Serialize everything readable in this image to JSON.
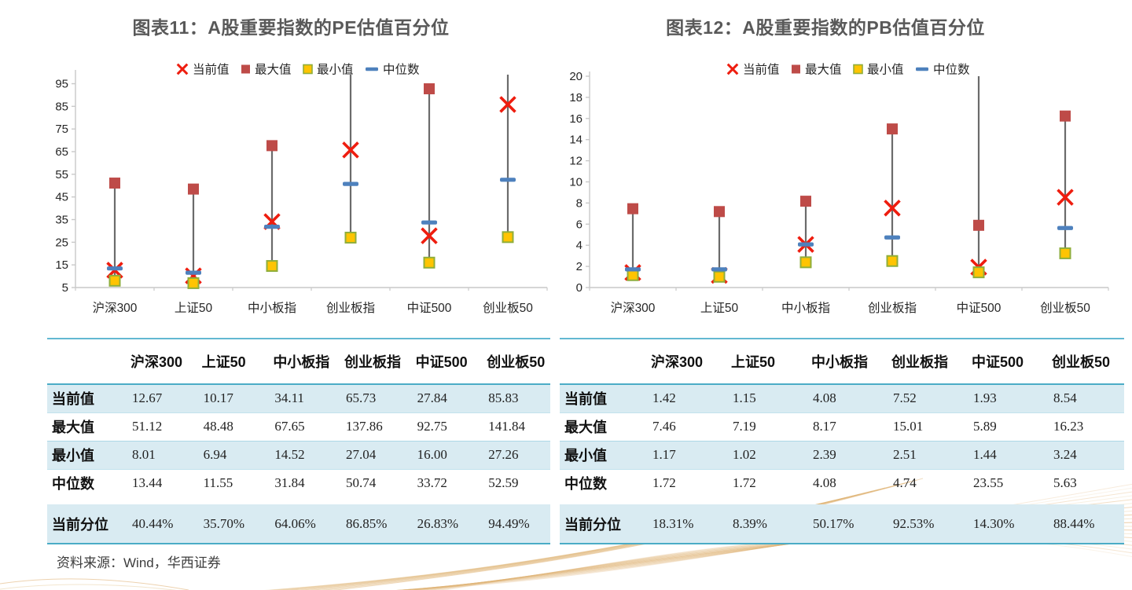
{
  "page": {
    "titles": [
      "图表11：A股重要指数的PE估值百分位",
      "图表12：A股重要指数的PB估值百分位"
    ],
    "source_note": "资料来源：Wind，华西证券"
  },
  "legend": [
    "当前值",
    "最大值",
    "最小值",
    "中位数"
  ],
  "colors": {
    "title": "#595959",
    "current_x": "#EE1D0F",
    "max_square": "#BE4B48",
    "min_fill": "#FFC402",
    "min_border": "#8FAE3B",
    "median_dash": "#4E81BD",
    "hilo_line": "#6B6B6B",
    "axis": "#C9C9C9",
    "table_fill": "#D9EBF2",
    "table_border": "#4BACC6",
    "decoration": "#D79B4E",
    "decoration_light": "#E8CD9F"
  },
  "chart_data": [
    {
      "type": "scatter",
      "title": "图表11：A股重要指数的PE估值百分位",
      "categories": [
        "沪深300",
        "上证50",
        "中小板指",
        "创业板指",
        "中证500",
        "创业板50"
      ],
      "series": [
        {
          "name": "当前值",
          "marker": "x",
          "values": [
            12.67,
            10.17,
            34.11,
            65.73,
            27.84,
            85.83
          ]
        },
        {
          "name": "最大值",
          "marker": "square",
          "values": [
            51.12,
            48.48,
            67.65,
            137.86,
            92.75,
            141.84
          ]
        },
        {
          "name": "最小值",
          "marker": "square",
          "values": [
            8.01,
            6.94,
            14.52,
            27.04,
            16.0,
            27.26
          ]
        },
        {
          "name": "中位数",
          "marker": "dash",
          "values": [
            13.44,
            11.55,
            31.84,
            50.74,
            33.72,
            52.59
          ]
        }
      ],
      "ylim": [
        5,
        99
      ],
      "yticks": [
        5,
        15,
        25,
        35,
        45,
        55,
        65,
        75,
        85,
        95
      ],
      "xlabel": "",
      "ylabel": "",
      "legend_position": "top",
      "grid": false,
      "hilo_lines": true
    },
    {
      "type": "scatter",
      "title": "图表12：A股重要指数的PB估值百分位",
      "categories": [
        "沪深300",
        "上证50",
        "中小板指",
        "创业板指",
        "中证500",
        "创业板50"
      ],
      "series": [
        {
          "name": "当前值",
          "marker": "x",
          "values": [
            1.42,
            1.15,
            4.08,
            7.52,
            1.93,
            8.54
          ]
        },
        {
          "name": "最大值",
          "marker": "square",
          "values": [
            7.46,
            7.19,
            8.17,
            15.01,
            5.89,
            16.23
          ]
        },
        {
          "name": "最小值",
          "marker": "square",
          "values": [
            1.17,
            1.02,
            2.39,
            2.51,
            1.44,
            3.24
          ]
        },
        {
          "name": "中位数",
          "marker": "dash",
          "values": [
            1.72,
            1.72,
            4.08,
            4.74,
            23.55,
            5.63
          ]
        }
      ],
      "ylim": [
        0,
        20
      ],
      "yticks": [
        0,
        2,
        4,
        6,
        8,
        10,
        12,
        14,
        16,
        18,
        20
      ],
      "xlabel": "",
      "ylabel": "",
      "legend_position": "top",
      "grid": false,
      "hilo_lines": true
    }
  ],
  "tables": [
    {
      "name": "PE估值表",
      "columns": [
        "沪深300",
        "上证50",
        "中小板指",
        "创业板指",
        "中证500",
        "创业板50"
      ],
      "rows": [
        {
          "label": "当前值",
          "values": [
            "12.67",
            "10.17",
            "34.11",
            "65.73",
            "27.84",
            "85.83"
          ]
        },
        {
          "label": "最大值",
          "values": [
            "51.12",
            "48.48",
            "67.65",
            "137.86",
            "92.75",
            "141.84"
          ]
        },
        {
          "label": "最小值",
          "values": [
            "8.01",
            "6.94",
            "14.52",
            "27.04",
            "16.00",
            "27.26"
          ]
        },
        {
          "label": "中位数",
          "values": [
            "13.44",
            "11.55",
            "31.84",
            "50.74",
            "33.72",
            "52.59"
          ]
        },
        {
          "label": "当前分位",
          "values": [
            "40.44%",
            "35.70%",
            "64.06%",
            "86.85%",
            "26.83%",
            "94.49%"
          ]
        }
      ]
    },
    {
      "name": "PB估值表",
      "columns": [
        "沪深300",
        "上证50",
        "中小板指",
        "创业板指",
        "中证500",
        "创业板50"
      ],
      "rows": [
        {
          "label": "当前值",
          "values": [
            "1.42",
            "1.15",
            "4.08",
            "7.52",
            "1.93",
            "8.54"
          ]
        },
        {
          "label": "最大值",
          "values": [
            "7.46",
            "7.19",
            "8.17",
            "15.01",
            "5.89",
            "16.23"
          ]
        },
        {
          "label": "最小值",
          "values": [
            "1.17",
            "1.02",
            "2.39",
            "2.51",
            "1.44",
            "3.24"
          ]
        },
        {
          "label": "中位数",
          "values": [
            "1.72",
            "1.72",
            "4.08",
            "4.74",
            "23.55",
            "5.63"
          ]
        },
        {
          "label": "当前分位",
          "values": [
            "18.31%",
            "8.39%",
            "50.17%",
            "92.53%",
            "14.30%",
            "88.44%"
          ]
        }
      ]
    }
  ]
}
